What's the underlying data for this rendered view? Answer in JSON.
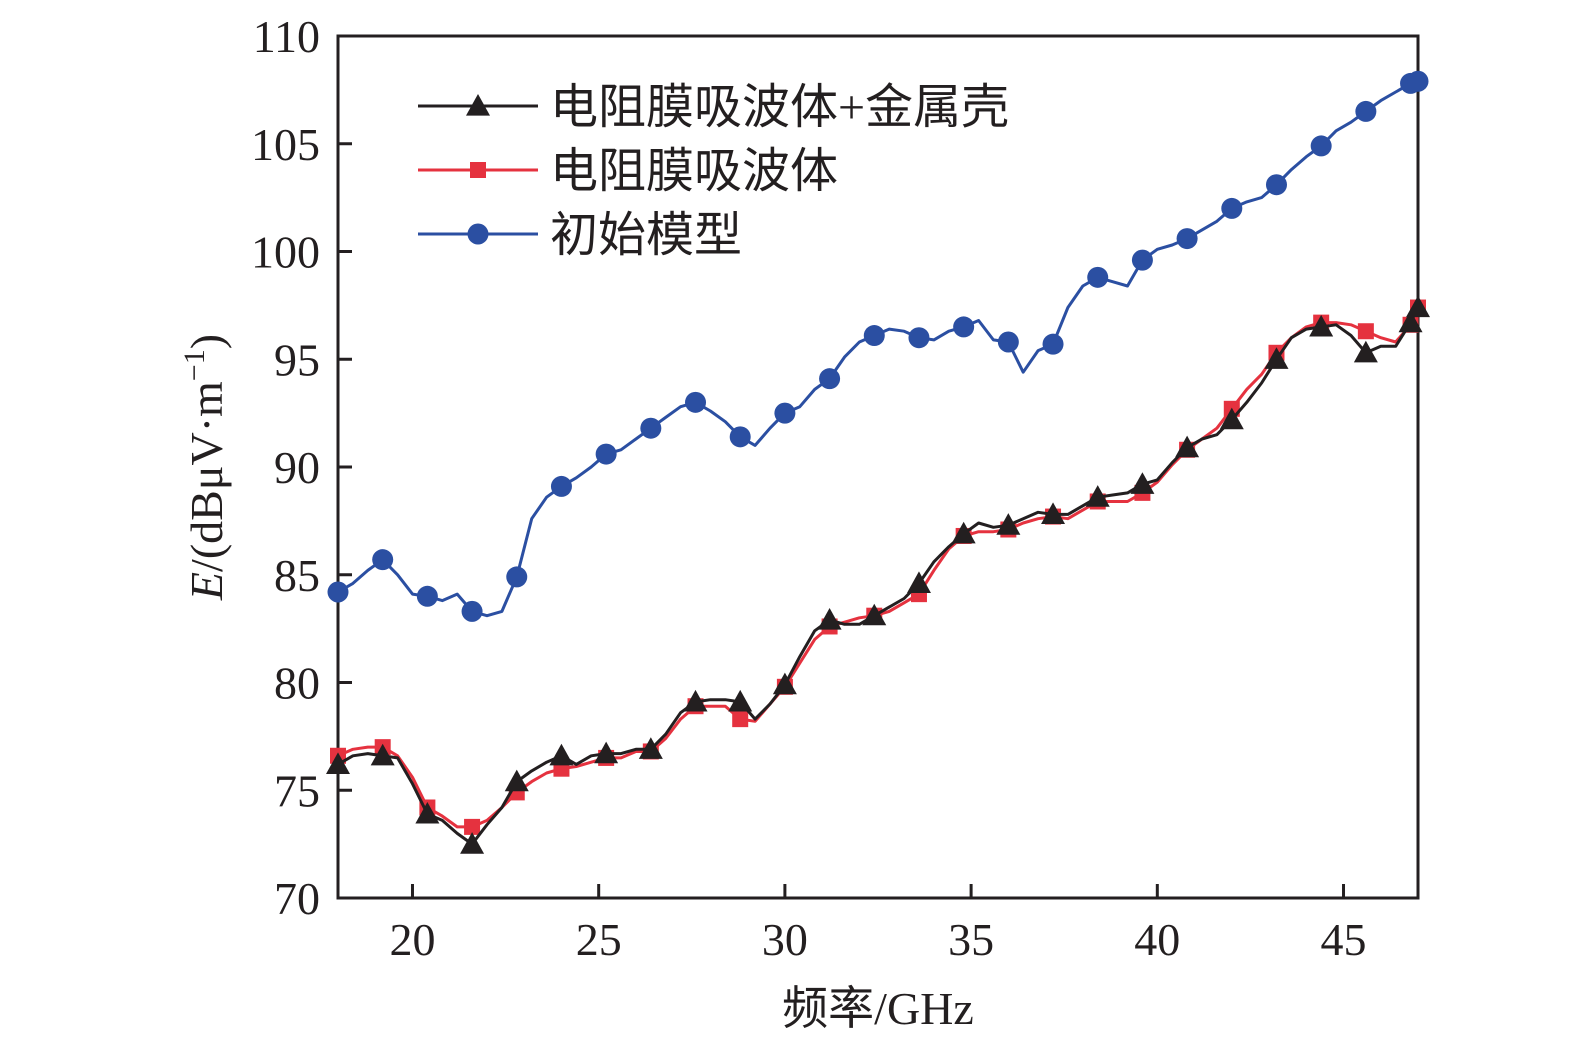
{
  "chart_data": {
    "type": "line",
    "xlabel": "频率/GHz",
    "ylabel": "E/(dBμV·m⁻¹)",
    "ylabel_parts": {
      "symbol": "E",
      "unit_prefix": "/(dBμV·m",
      "unit_sup": "−1",
      "unit_suffix": ")"
    },
    "xlim": [
      18,
      47
    ],
    "ylim": [
      70,
      110
    ],
    "x_ticks": [
      20,
      25,
      30,
      35,
      40,
      45
    ],
    "x_tick_labels": [
      "20",
      "25",
      "30",
      "35",
      "40",
      "45"
    ],
    "y_ticks": [
      70,
      75,
      80,
      85,
      90,
      95,
      100,
      105,
      110
    ],
    "y_tick_labels": [
      "70",
      "75",
      "80",
      "85",
      "90",
      "95",
      "100",
      "105",
      "110"
    ],
    "grid": false,
    "legend_position": "top-left",
    "series": [
      {
        "name": "电阻膜吸波体+金属壳",
        "color": "#231f20",
        "marker": "triangle",
        "x": [
          18.0,
          18.4,
          18.8,
          19.2,
          19.6,
          20.0,
          20.4,
          20.8,
          21.2,
          21.6,
          22.0,
          22.4,
          22.8,
          23.2,
          23.6,
          24.0,
          24.4,
          24.8,
          25.2,
          25.6,
          26.0,
          26.4,
          26.8,
          27.2,
          27.6,
          28.0,
          28.4,
          28.8,
          29.2,
          29.6,
          30.0,
          30.4,
          30.8,
          31.2,
          31.6,
          32.0,
          32.4,
          32.8,
          33.2,
          33.6,
          34.0,
          34.4,
          34.8,
          35.2,
          35.6,
          36.0,
          36.4,
          36.8,
          37.2,
          37.6,
          38.0,
          38.4,
          38.8,
          39.2,
          39.6,
          40.0,
          40.4,
          40.8,
          41.2,
          41.6,
          42.0,
          42.4,
          42.8,
          43.2,
          43.6,
          44.0,
          44.4,
          44.8,
          45.2,
          45.6,
          46.0,
          46.4,
          46.8,
          47.0
        ],
        "y": [
          76.2,
          76.6,
          76.7,
          76.6,
          76.5,
          75.3,
          73.9,
          73.6,
          73.0,
          72.5,
          73.4,
          74.2,
          75.4,
          75.9,
          76.3,
          76.6,
          76.2,
          76.6,
          76.7,
          76.7,
          76.9,
          76.9,
          77.6,
          78.6,
          79.1,
          79.2,
          79.2,
          79.1,
          78.3,
          79.0,
          79.9,
          81.2,
          82.4,
          82.9,
          82.7,
          82.7,
          83.1,
          83.5,
          83.9,
          84.6,
          85.6,
          86.3,
          86.9,
          87.4,
          87.2,
          87.3,
          87.6,
          87.9,
          87.8,
          87.8,
          88.2,
          88.6,
          88.7,
          88.8,
          89.2,
          89.4,
          90.2,
          90.9,
          91.3,
          91.5,
          92.2,
          93.0,
          93.9,
          95.0,
          96.0,
          96.4,
          96.5,
          96.6,
          96.1,
          95.3,
          95.6,
          95.6,
          96.7,
          97.4
        ]
      },
      {
        "name": "电阻膜吸波体",
        "color": "#e5323f",
        "marker": "square",
        "x": [
          18.0,
          18.4,
          18.8,
          19.2,
          19.6,
          20.0,
          20.4,
          20.8,
          21.2,
          21.6,
          22.0,
          22.4,
          22.8,
          23.2,
          23.6,
          24.0,
          24.4,
          24.8,
          25.2,
          25.6,
          26.0,
          26.4,
          26.8,
          27.2,
          27.6,
          28.0,
          28.4,
          28.8,
          29.2,
          29.6,
          30.0,
          30.4,
          30.8,
          31.2,
          31.6,
          32.0,
          32.4,
          32.8,
          33.2,
          33.6,
          34.0,
          34.4,
          34.8,
          35.2,
          35.6,
          36.0,
          36.4,
          36.8,
          37.2,
          37.6,
          38.0,
          38.4,
          38.8,
          39.2,
          39.6,
          40.0,
          40.4,
          40.8,
          41.2,
          41.6,
          42.0,
          42.4,
          42.8,
          43.2,
          43.6,
          44.0,
          44.4,
          44.8,
          45.2,
          45.6,
          46.0,
          46.4,
          46.8,
          47.0
        ],
        "y": [
          76.6,
          76.9,
          77.0,
          77.0,
          76.6,
          75.6,
          74.2,
          73.8,
          73.3,
          73.3,
          73.6,
          74.2,
          74.9,
          75.4,
          75.8,
          76.0,
          76.1,
          76.3,
          76.5,
          76.5,
          76.8,
          76.8,
          77.4,
          78.3,
          78.9,
          78.9,
          78.9,
          78.3,
          78.2,
          79.0,
          79.8,
          80.9,
          82.0,
          82.6,
          82.8,
          83.0,
          83.1,
          83.3,
          83.7,
          84.1,
          85.2,
          86.2,
          86.8,
          87.0,
          87.0,
          87.1,
          87.4,
          87.6,
          87.7,
          87.6,
          88.0,
          88.4,
          88.4,
          88.4,
          88.8,
          89.3,
          90.1,
          90.8,
          91.3,
          91.8,
          92.7,
          93.6,
          94.3,
          95.3,
          96.0,
          96.5,
          96.7,
          96.7,
          96.6,
          96.3,
          96.0,
          95.8,
          96.6,
          97.4
        ]
      },
      {
        "name": "初始模型",
        "color": "#2b4fa2",
        "marker": "circle",
        "x": [
          18.0,
          18.4,
          18.8,
          19.2,
          19.6,
          20.0,
          20.4,
          20.8,
          21.2,
          21.6,
          22.0,
          22.4,
          22.8,
          23.2,
          23.6,
          24.0,
          24.4,
          24.8,
          25.2,
          25.6,
          26.0,
          26.4,
          26.8,
          27.2,
          27.6,
          28.0,
          28.4,
          28.8,
          29.2,
          29.6,
          30.0,
          30.4,
          30.8,
          31.2,
          31.6,
          32.0,
          32.4,
          32.8,
          33.2,
          33.6,
          34.0,
          34.4,
          34.8,
          35.2,
          35.6,
          36.0,
          36.4,
          36.8,
          37.2,
          37.6,
          38.0,
          38.4,
          38.8,
          39.2,
          39.6,
          40.0,
          40.4,
          40.8,
          41.2,
          41.6,
          42.0,
          42.4,
          42.8,
          43.2,
          43.6,
          44.0,
          44.4,
          44.8,
          45.2,
          45.6,
          46.0,
          46.4,
          46.8,
          47.0
        ],
        "y": [
          84.2,
          84.6,
          85.2,
          85.7,
          85.0,
          84.1,
          84.0,
          83.8,
          84.1,
          83.3,
          83.1,
          83.3,
          84.9,
          87.6,
          88.6,
          89.1,
          89.5,
          90.0,
          90.6,
          90.8,
          91.3,
          91.8,
          92.3,
          92.8,
          93.0,
          92.6,
          92.1,
          91.4,
          91.0,
          91.8,
          92.5,
          92.8,
          93.6,
          94.1,
          95.1,
          95.8,
          96.1,
          96.4,
          96.3,
          96.0,
          95.9,
          96.3,
          96.5,
          96.8,
          95.9,
          95.8,
          94.4,
          95.4,
          95.7,
          97.4,
          98.4,
          98.8,
          98.6,
          98.4,
          99.6,
          100.1,
          100.3,
          100.6,
          101.0,
          101.4,
          102.0,
          102.3,
          102.5,
          103.1,
          103.8,
          104.4,
          104.9,
          105.6,
          106.0,
          106.5,
          107.0,
          107.4,
          107.8,
          107.9
        ]
      }
    ]
  }
}
